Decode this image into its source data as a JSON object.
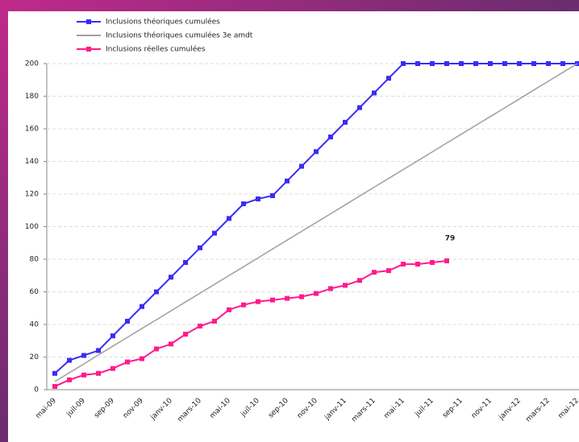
{
  "chart_data": {
    "type": "line",
    "categories": [
      "mai-09",
      null,
      "juil-09",
      null,
      "sep-09",
      null,
      "nov-09",
      null,
      "janv-10",
      null,
      "mars-10",
      null,
      "mai-10",
      null,
      "juil-10",
      null,
      "sep-10",
      null,
      "nov-10",
      null,
      "janv-11",
      null,
      "mars-11",
      null,
      "mai-11",
      null,
      "juil-11",
      null,
      "sep-11",
      null,
      "nov-11",
      null,
      "janv-12",
      null,
      "mars-12",
      null,
      "mai-12"
    ],
    "series": [
      {
        "name": "Inclusions théoriques cumulées",
        "color": "#3a2cf5",
        "marker": true,
        "values": [
          10,
          18,
          21,
          24,
          33,
          42,
          51,
          60,
          69,
          78,
          87,
          96,
          105,
          114,
          117,
          119,
          128,
          137,
          146,
          155,
          164,
          173,
          182,
          191,
          200,
          200,
          200,
          200,
          200,
          200,
          200,
          200,
          200,
          200,
          200,
          200,
          200
        ]
      },
      {
        "name": "Inclusions théoriques cumulées 3e amdt",
        "color": "#a0a0a0",
        "marker": false,
        "values": [
          5,
          10.4,
          15.8,
          21.3,
          26.7,
          32.1,
          37.5,
          42.9,
          48.3,
          53.8,
          59.2,
          64.6,
          70,
          75.4,
          80.8,
          86.3,
          91.7,
          97.1,
          102.5,
          107.9,
          113.3,
          118.8,
          124.2,
          129.6,
          135,
          140.4,
          145.8,
          151.3,
          156.7,
          162.1,
          167.5,
          172.9,
          178.3,
          183.8,
          189.2,
          194.6,
          200
        ]
      },
      {
        "name": "Inclusions réelles cumulées",
        "color": "#ff1a8c",
        "marker": true,
        "values": [
          2,
          6,
          9,
          10,
          13,
          17,
          19,
          25,
          28,
          34,
          39,
          42,
          49,
          52,
          54,
          55,
          56,
          57,
          59,
          62,
          64,
          67,
          72,
          73,
          77,
          77,
          78,
          79,
          null,
          null,
          null,
          null,
          null,
          null,
          null,
          null,
          null
        ]
      }
    ],
    "ylim": [
      0,
      200
    ],
    "yticks": [
      0,
      20,
      40,
      60,
      80,
      100,
      120,
      140,
      160,
      180,
      200
    ],
    "grid": true
  }
}
